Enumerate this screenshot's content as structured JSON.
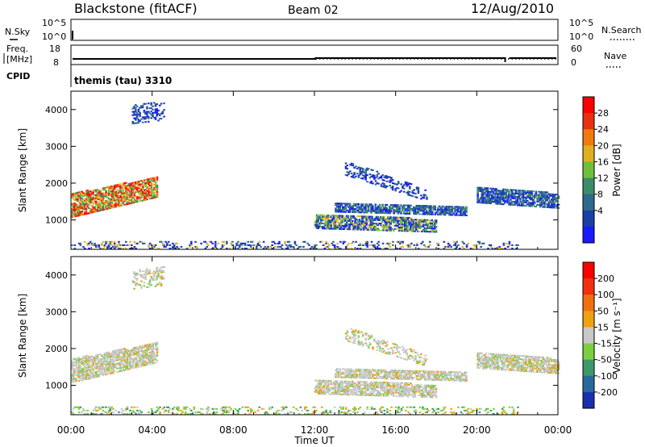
{
  "header": {
    "title": "Blackstone (fitACF)",
    "beam": "Beam 02",
    "date": "12/Aug/2010"
  },
  "noise_panel": {
    "left_label": "N.Sky",
    "right_label": "N.Search",
    "left_ticks": [
      "10^5",
      "10^0"
    ],
    "right_ticks": [
      "10^5",
      "10^0"
    ]
  },
  "freq_panel": {
    "left_label_line1": "Freq.",
    "left_label_line2": "[MHz]",
    "right_label": "Nave",
    "left_ticks": [
      "18",
      "8"
    ],
    "right_ticks": [
      "60",
      "0"
    ]
  },
  "cpid_panel": {
    "label": "CPID",
    "mode_text": "themis (tau) 3310"
  },
  "chart_data": [
    {
      "type": "heatmap",
      "name": "power",
      "ylabel": "Slant Range [km]",
      "ylim": [
        200,
        4500
      ],
      "y_ticks": [
        1000,
        2000,
        3000,
        4000
      ],
      "x_ticks_hours": [
        0,
        4,
        8,
        12,
        16,
        20,
        24
      ],
      "xlim_hours": [
        0,
        24
      ],
      "colorbar": {
        "label": "Power [dB]",
        "ticks": [
          "28",
          "24",
          "20",
          "16",
          "12",
          "8",
          "4"
        ],
        "colors": [
          "#1a1aff",
          "#1b3fa6",
          "#2e6a8a",
          "#3a8c6a",
          "#6fbf3a",
          "#e0b020",
          "#f07a10",
          "#e83010",
          "#ff0000"
        ]
      }
    },
    {
      "type": "heatmap",
      "name": "velocity",
      "ylabel": "Slant Range [km]",
      "ylim": [
        200,
        4500
      ],
      "y_ticks": [
        1000,
        2000,
        3000,
        4000
      ],
      "x_ticks_hours": [
        0,
        4,
        8,
        12,
        16,
        20,
        24
      ],
      "xlim_hours": [
        0,
        24
      ],
      "colorbar": {
        "label": "Velocity [m s⁻¹]",
        "ticks": [
          "200",
          "100",
          "50",
          "15",
          "-15",
          "-50",
          "-100",
          "-200"
        ],
        "colors": [
          "#1a2fb0",
          "#2a6a9a",
          "#3a9a6a",
          "#7cd040",
          "#c8c8c8",
          "#f0a010",
          "#f07010",
          "#f03010",
          "#ff0000"
        ]
      }
    }
  ],
  "x_axis": {
    "tick_labels": [
      "00:00",
      "04:00",
      "08:00",
      "12:00",
      "16:00",
      "20:00",
      "00:00"
    ],
    "label": "Time UT"
  },
  "echo_regions": [
    {
      "name": "early-band",
      "t0": 0.0,
      "t1": 4.2,
      "r0": 1050,
      "r1": 1700,
      "r0_end": 1600,
      "r1_end": 2150,
      "power": "high",
      "vel": "low"
    },
    {
      "name": "early-top",
      "t0": 3.0,
      "t1": 4.6,
      "r0": 3600,
      "r1": 4100,
      "r0_end": 3700,
      "r1_end": 4200,
      "power": "low",
      "vel": "low"
    },
    {
      "name": "midday-band-1",
      "t0": 12.0,
      "t1": 18.0,
      "r0": 750,
      "r1": 1150,
      "r0_end": 650,
      "r1_end": 1000,
      "power": "mid",
      "vel": "low"
    },
    {
      "name": "midday-band-2",
      "t0": 13.0,
      "t1": 19.5,
      "r0": 1200,
      "r1": 1450,
      "r0_end": 1100,
      "r1_end": 1350,
      "power": "lowmid",
      "vel": "low"
    },
    {
      "name": "evening-band",
      "t0": 20.0,
      "t1": 24.0,
      "r0": 1450,
      "r1": 1900,
      "r0_end": 1300,
      "r1_end": 1700,
      "power": "lowmid",
      "vel": "low"
    },
    {
      "name": "arc-band",
      "t0": 13.5,
      "t1": 17.5,
      "r0": 2200,
      "r1": 2600,
      "r0_end": 1500,
      "r1_end": 1800,
      "power": "low",
      "vel": "low"
    },
    {
      "name": "ground-scatter",
      "t0": 0.0,
      "t1": 22.0,
      "r0": 200,
      "r1": 420,
      "r0_end": 200,
      "r1_end": 420,
      "power": "sparse",
      "vel": "green"
    }
  ]
}
